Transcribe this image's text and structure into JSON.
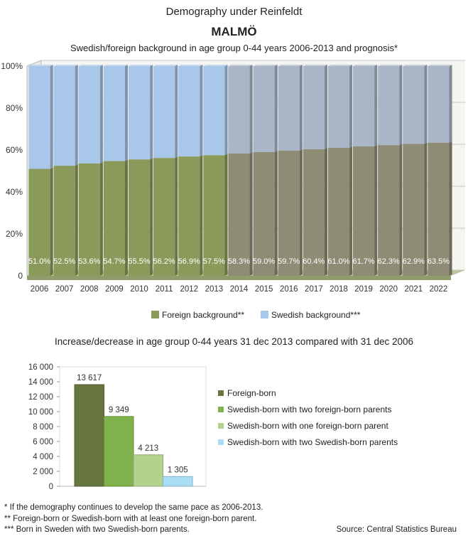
{
  "header": {
    "title": "Demography under Reinfeldt",
    "city": "MALMÖ",
    "subtitle": "Swedish/foreign background in age group 0-44 years 2006-2013 and prognosis*"
  },
  "chart_data": [
    {
      "type": "bar",
      "stacked": true,
      "categories": [
        "2006",
        "2007",
        "2008",
        "2009",
        "2010",
        "2011",
        "2012",
        "2013",
        "2014",
        "2015",
        "2016",
        "2017",
        "2018",
        "2019",
        "2020",
        "2021",
        "2022"
      ],
      "yticks": [
        "0",
        "20%",
        "40%",
        "60%",
        "80%",
        "100%"
      ],
      "ylim": [
        0,
        100
      ],
      "series": [
        {
          "name": "Foreign background**",
          "color": "#8a9a5b",
          "values": [
            51.0,
            52.5,
            53.6,
            54.7,
            55.5,
            56.2,
            56.9,
            57.5,
            58.3,
            59.0,
            59.7,
            60.4,
            61.0,
            61.7,
            62.3,
            62.9,
            63.5
          ],
          "labels": [
            "51.0%",
            "52.5%",
            "53.6%",
            "54.7%",
            "55.5%",
            "56.2%",
            "56.9%",
            "57.5%",
            "58.3%",
            "59.0%",
            "59.7%",
            "60.4%",
            "61.0%",
            "61.7%",
            "62.3%",
            "62.9%",
            "63.5%"
          ]
        },
        {
          "name": "Swedish background***",
          "color": "#a9c7e8",
          "values": [
            49.0,
            47.5,
            46.4,
            45.3,
            44.5,
            43.8,
            43.1,
            42.5,
            41.7,
            41.0,
            40.3,
            39.6,
            39.0,
            38.3,
            37.7,
            37.1,
            36.5
          ]
        }
      ],
      "prognosis_from": "2014",
      "grid": true,
      "legend": "bottom"
    },
    {
      "type": "bar",
      "title": "Increase/decrease in age group 0-44 years 31 dec 2013 compared with 31 dec 2006",
      "ylim": [
        0,
        16000
      ],
      "yticks": [
        "0",
        "2 000",
        "4 000",
        "6 000",
        "8 000",
        "10 000",
        "12 000",
        "14 000",
        "16 000"
      ],
      "series": [
        {
          "name": "Foreign-born",
          "value": 13617,
          "label": "13 617",
          "color": "#66753d"
        },
        {
          "name": "Swedish-born with two foreign-born parents",
          "value": 9349,
          "label": "9 349",
          "color": "#7fb24c"
        },
        {
          "name": "Swedish-born with one foreign-born parent",
          "value": 4213,
          "label": "4 213",
          "color": "#b3d38c"
        },
        {
          "name": "Swedish-born with two Swedish-born parents",
          "value": 1305,
          "label": "1 305",
          "color": "#a9dcf5"
        }
      ],
      "legend": "right"
    }
  ],
  "footnotes": [
    "* If the demography continues to develop the same pace as 2006-2013.",
    "** Foreign-born or Swedish-born with at least one foreign-born parent.",
    "*** Born in Sweden with two Swedish-born parents."
  ],
  "source": "Source: Central Statistics Bureau"
}
